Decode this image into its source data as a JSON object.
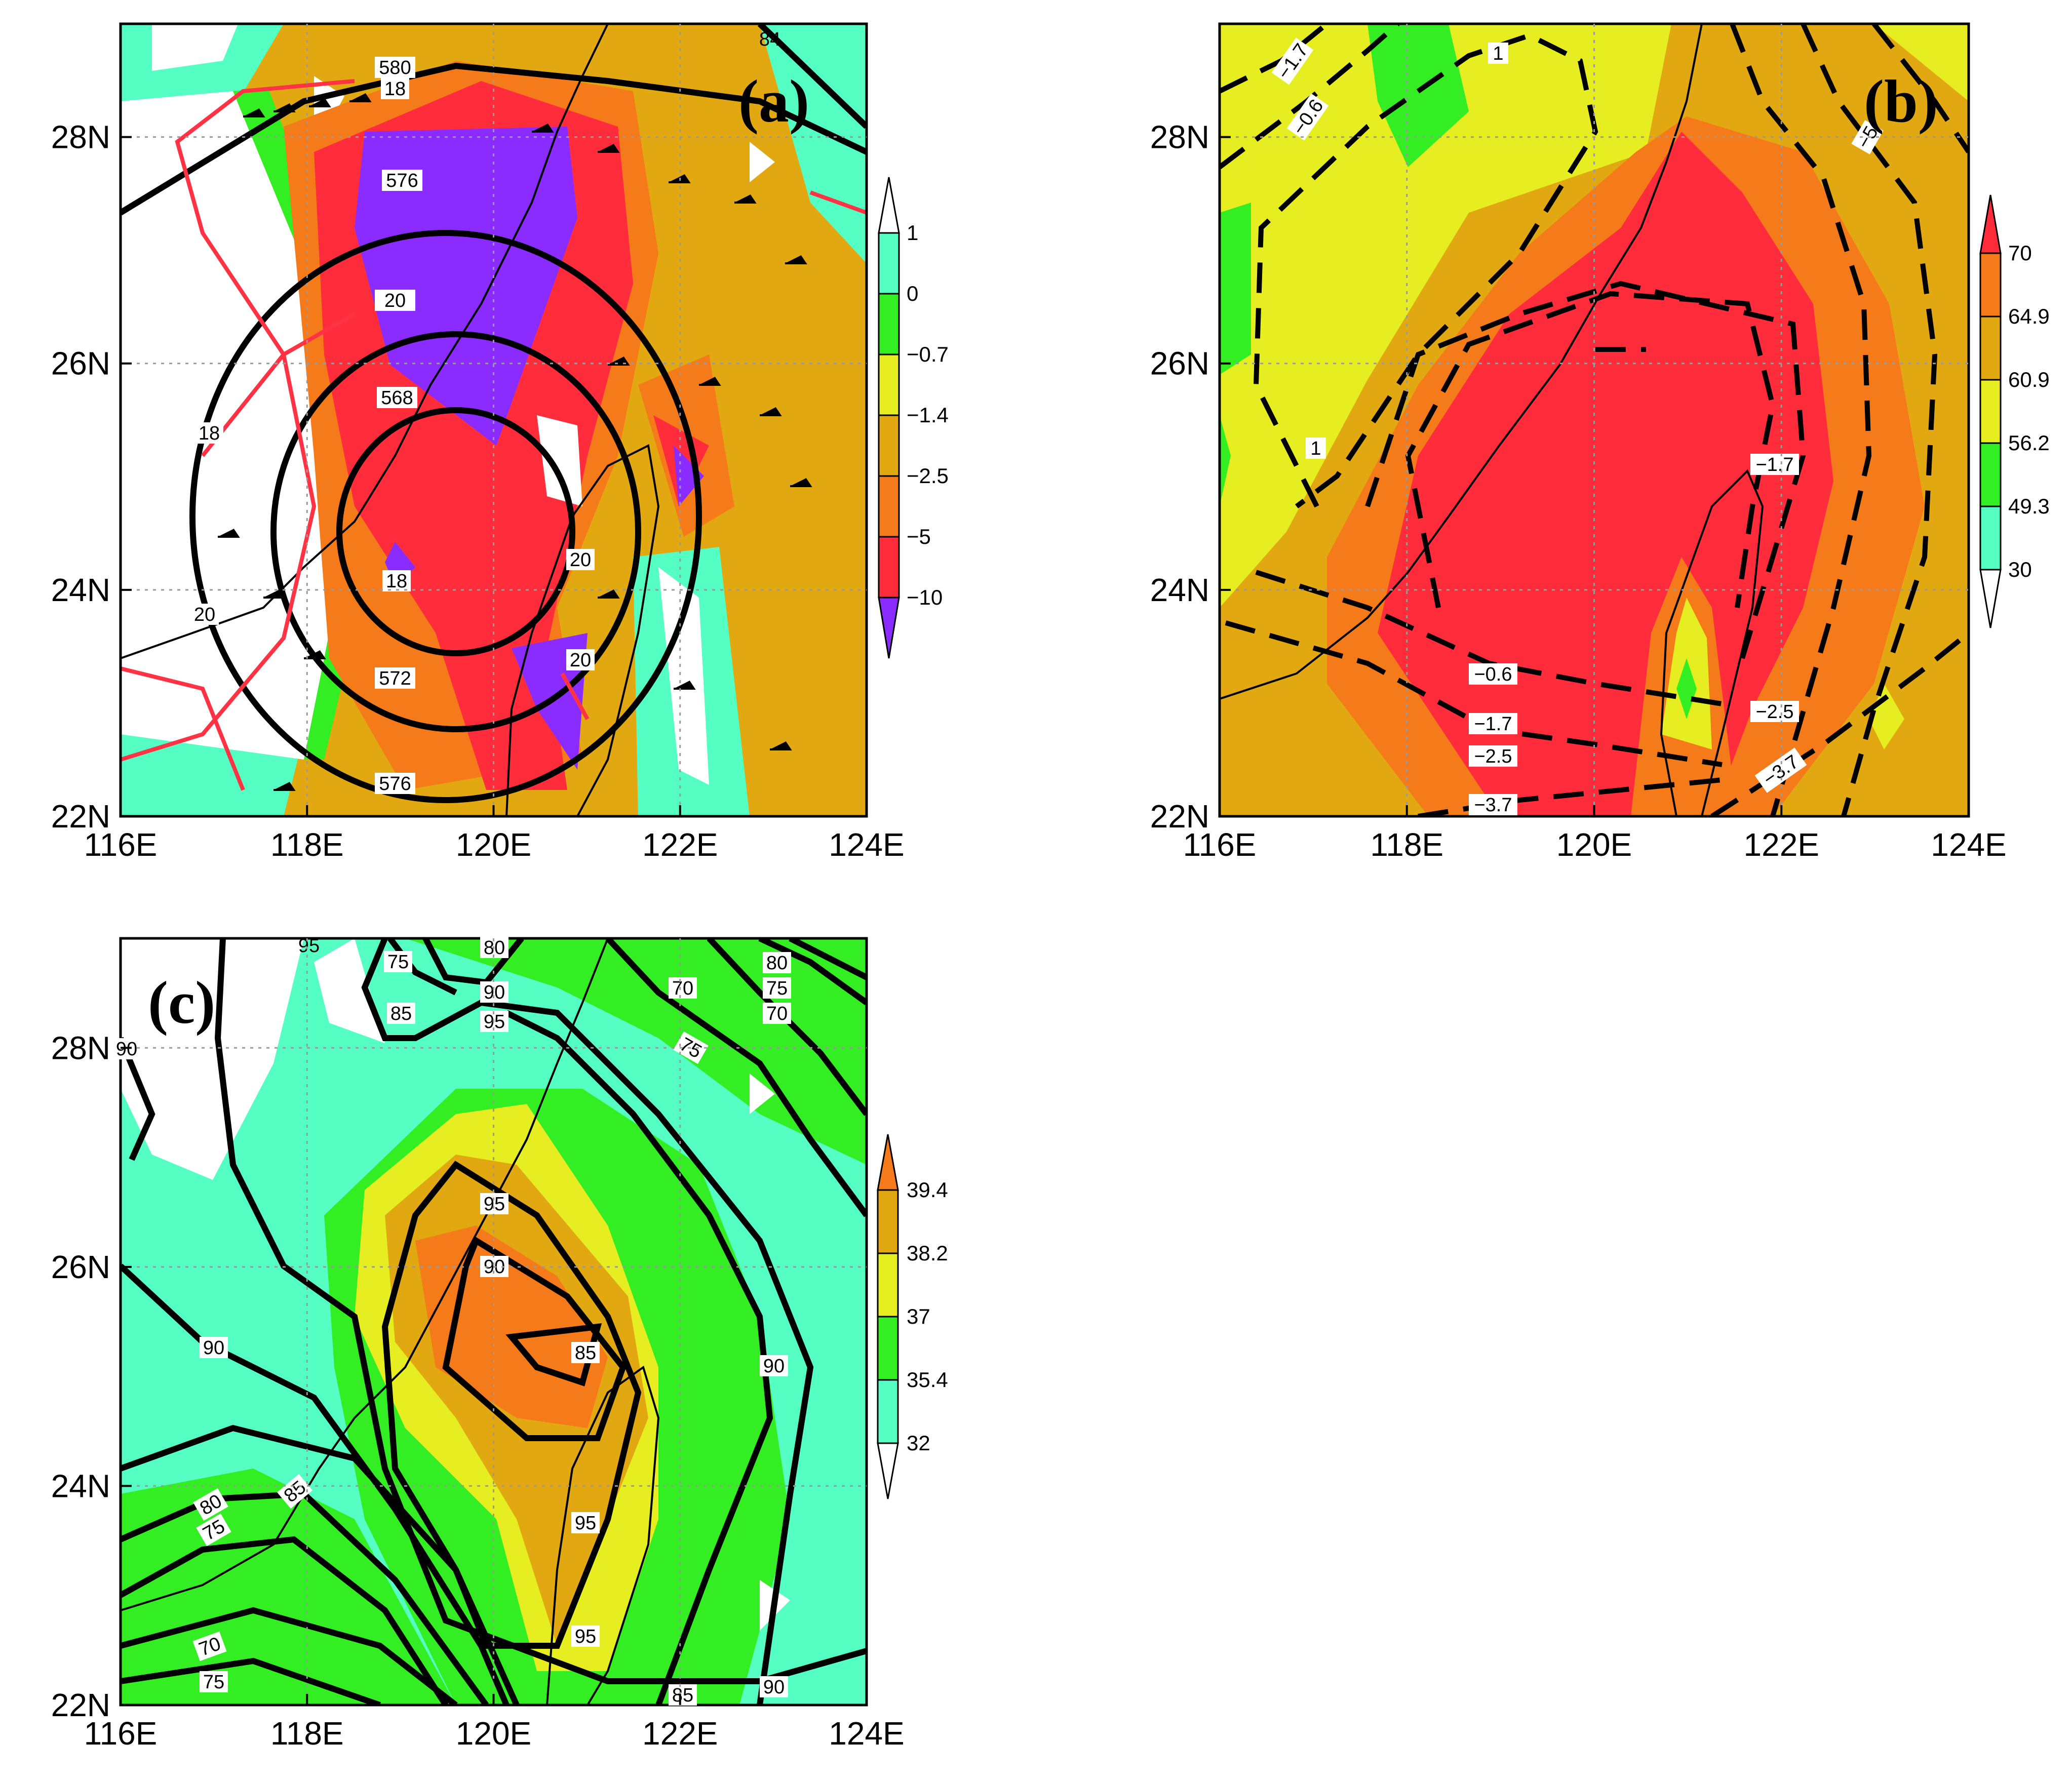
{
  "axes": {
    "x_ticks": [
      "116E",
      "118E",
      "120E",
      "122E",
      "124E"
    ],
    "y_ticks": [
      "22N",
      "24N",
      "26N",
      "28N"
    ]
  },
  "colors": {
    "cyan": "#55ffc4",
    "green": "#33ee22",
    "yellow": "#e6ee22",
    "gold": "#e2a812",
    "orange": "#f57a1a",
    "red": "#ff2d3c",
    "purple": "#8a2cff",
    "contour": "#000000",
    "red_contour": "#ff3344"
  },
  "panels": [
    {
      "label": "(a)",
      "colorbar": [
        "1",
        "0",
        "−0.7",
        "−1.4",
        "−2.5",
        "−5",
        "−10"
      ],
      "contour_labels": [
        "580",
        "18",
        "576",
        "20",
        "568",
        "18",
        "20",
        "20",
        "18",
        "572",
        "576",
        "20",
        "84"
      ]
    },
    {
      "label": "(b)",
      "colorbar": [
        "70",
        "64.9",
        "60.9",
        "56.2",
        "49.3",
        "30"
      ],
      "contour_labels": [
        "1",
        "−1.7",
        "−0.6",
        "−5",
        "1",
        "−1.7",
        "−0.6",
        "−1.7",
        "−2.5",
        "−2.5",
        "−3.7",
        "−3.7"
      ]
    },
    {
      "label": "(c)",
      "colorbar": [
        "39.4",
        "38.2",
        "37",
        "35.4",
        "32"
      ],
      "contour_labels": [
        "95",
        "75",
        "80",
        "85",
        "90",
        "95",
        "70",
        "80",
        "75",
        "70",
        "75",
        "90",
        "95",
        "90",
        "85",
        "90",
        "90",
        "80",
        "85",
        "75",
        "95",
        "95",
        "70",
        "75",
        "85",
        "90"
      ]
    }
  ]
}
